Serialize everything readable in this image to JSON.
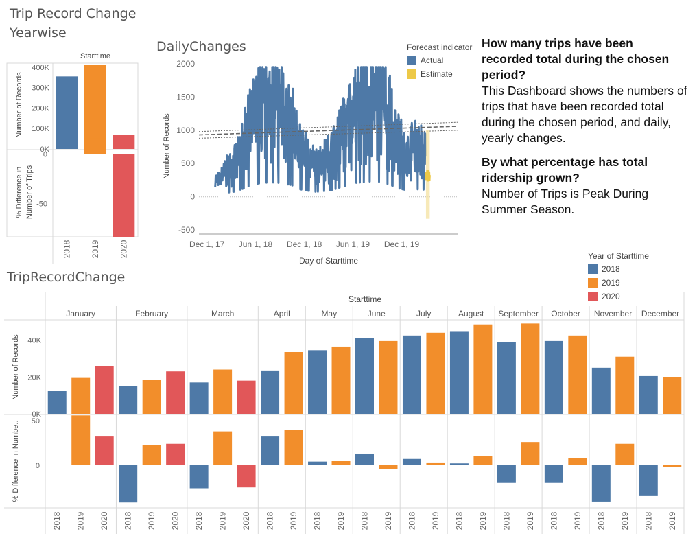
{
  "titles": {
    "yearwise_line1": "Trip Record Change",
    "yearwise_line2": "Yearwise",
    "daily": "DailyChanges",
    "triprecord": "TripRecordChange"
  },
  "text_panel": {
    "q1": "How many trips have been recorded total during the chosen period?",
    "a1": "This Dashboard shows the numbers of trips that have been recorded total during the chosen period, and daily, yearly changes.",
    "q2": "By what percentage has total ridership grown?",
    "a2": "Number of Trips is Peak During Summer Season."
  },
  "forecast_legend": {
    "title": "Forecast indicator",
    "items": [
      {
        "label": "Actual",
        "color": "#4e79a7"
      },
      {
        "label": "Estimate",
        "color": "#edc948"
      }
    ]
  },
  "year_legend": {
    "title": "Year of Starttime",
    "items": [
      {
        "label": "2018",
        "color": "#4e79a7"
      },
      {
        "label": "2019",
        "color": "#f28e2b"
      },
      {
        "label": "2020",
        "color": "#e15759"
      }
    ]
  },
  "chart_data": [
    {
      "id": "yearwise",
      "type": "bar",
      "header": "Starttime",
      "categories": [
        "2018",
        "2019",
        "2020"
      ],
      "colors": [
        "#4e79a7",
        "#f28e2b",
        "#e15759"
      ],
      "top": {
        "ylabel": "Number of Records",
        "values": [
          355000,
          410000,
          68000
        ],
        "ylim": [
          0,
          420000
        ],
        "ticks": [
          0,
          100000,
          200000,
          300000,
          400000
        ],
        "tick_labels": [
          "0K",
          "100K",
          "200K",
          "300K",
          "400K"
        ]
      },
      "bottom": {
        "ylabel": "% Difference in Number of Trips",
        "values": [
          null,
          16,
          -84
        ],
        "ylim": [
          -84,
          4
        ],
        "ticks": [
          0,
          -50
        ],
        "tick_labels": [
          "0",
          "-50"
        ]
      }
    },
    {
      "id": "daily",
      "type": "line",
      "title": "DailyChanges",
      "xlabel": "Day of Starttime",
      "ylabel": "Number of Records",
      "ylim": [
        -550,
        2050
      ],
      "yticks": [
        -500,
        0,
        500,
        1000,
        1500,
        2000
      ],
      "xticks": [
        "Dec 1, 17",
        "Jun 1, 18",
        "Dec 1, 18",
        "Jun 1, 19",
        "Dec 1, 19"
      ],
      "xtick_dates": [
        "2017-12-01",
        "2018-06-01",
        "2018-12-01",
        "2019-06-01",
        "2019-12-01"
      ],
      "x_range": [
        "2017-11-01",
        "2020-06-30"
      ],
      "actual_start": "2018-01-01",
      "actual_end": "2020-02-29",
      "actual_monthly_levels": [
        [
          "2018-01",
          250
        ],
        [
          "2018-02",
          420
        ],
        [
          "2018-03",
          520
        ],
        [
          "2018-04",
          800
        ],
        [
          "2018-05",
          1150
        ],
        [
          "2018-06",
          1350
        ],
        [
          "2018-07",
          1420
        ],
        [
          "2018-08",
          1430
        ],
        [
          "2018-09",
          1330
        ],
        [
          "2018-10",
          1150
        ],
        [
          "2018-11",
          750
        ],
        [
          "2018-12",
          600
        ],
        [
          "2019-01",
          500
        ],
        [
          "2019-02",
          580
        ],
        [
          "2019-03",
          680
        ],
        [
          "2019-04",
          950
        ],
        [
          "2019-05",
          1180
        ],
        [
          "2019-06",
          1400
        ],
        [
          "2019-07",
          1480
        ],
        [
          "2019-08",
          1560
        ],
        [
          "2019-09",
          1480
        ],
        [
          "2019-10",
          1250
        ],
        [
          "2019-11",
          880
        ],
        [
          "2019-12",
          680
        ],
        [
          "2020-01",
          780
        ],
        [
          "2020-02",
          720
        ]
      ],
      "actual_peak": 1950,
      "actual_min": 40,
      "forecast_start": "2020-03-01",
      "forecast_end": "2020-03-15",
      "forecast_mean": 300,
      "forecast_range": [
        -330,
        1000
      ],
      "trend_lines": [
        {
          "from": [
            "2017-11-01",
            930
          ],
          "to": [
            "2020-06-30",
            1060
          ],
          "style": "dashed"
        },
        {
          "from": [
            "2017-11-01",
            880
          ],
          "to": [
            "2020-06-30",
            1000
          ],
          "style": "dotted"
        },
        {
          "from": [
            "2017-11-01",
            980
          ],
          "to": [
            "2020-06-30",
            1120
          ],
          "style": "dotted"
        }
      ]
    },
    {
      "id": "monthly",
      "type": "bar",
      "title": "TripRecordChange",
      "header": "Starttime",
      "months": [
        {
          "name": "January",
          "years": [
            "2018",
            "2019",
            "2020"
          ],
          "records": [
            12500,
            19500,
            26000
          ],
          "pct": [
            null,
            56,
            33
          ]
        },
        {
          "name": "February",
          "years": [
            "2018",
            "2019",
            "2020"
          ],
          "records": [
            15000,
            18500,
            23000
          ],
          "pct": [
            -42,
            23,
            24
          ]
        },
        {
          "name": "March",
          "years": [
            "2018",
            "2019",
            "2020"
          ],
          "records": [
            17000,
            24000,
            18000
          ],
          "pct": [
            -26,
            38,
            -25
          ]
        },
        {
          "name": "April",
          "years": [
            "2018",
            "2019"
          ],
          "records": [
            23500,
            33500
          ],
          "pct": [
            33,
            40
          ]
        },
        {
          "name": "May",
          "years": [
            "2018",
            "2019"
          ],
          "records": [
            34500,
            36500
          ],
          "pct": [
            4,
            5
          ]
        },
        {
          "name": "June",
          "years": [
            "2018",
            "2019"
          ],
          "records": [
            41000,
            39500
          ],
          "pct": [
            13,
            -4
          ]
        },
        {
          "name": "July",
          "years": [
            "2018",
            "2019"
          ],
          "records": [
            42500,
            44000
          ],
          "pct": [
            7,
            3
          ]
        },
        {
          "name": "August",
          "years": [
            "2018",
            "2019"
          ],
          "records": [
            44500,
            48500
          ],
          "pct": [
            2,
            10
          ]
        },
        {
          "name": "September",
          "years": [
            "2018",
            "2019"
          ],
          "records": [
            39000,
            49000
          ],
          "pct": [
            -20,
            26
          ]
        },
        {
          "name": "October",
          "years": [
            "2018",
            "2019"
          ],
          "records": [
            39500,
            42500
          ],
          "pct": [
            -20,
            8
          ]
        },
        {
          "name": "November",
          "years": [
            "2018",
            "2019"
          ],
          "records": [
            25000,
            31000
          ],
          "pct": [
            -41,
            24
          ]
        },
        {
          "name": "December",
          "years": [
            "2018",
            "2019"
          ],
          "records": [
            20500,
            20000
          ],
          "pct": [
            -34,
            -2
          ]
        }
      ],
      "top": {
        "ylabel": "Number of Records",
        "ylim": [
          0,
          51000
        ],
        "ticks": [
          0,
          20000,
          40000
        ],
        "tick_labels": [
          "0K",
          "20K",
          "40K"
        ]
      },
      "bottom": {
        "ylabel": "% Difference in Numbe..",
        "ylim": [
          -48,
          57
        ],
        "ticks": [
          0,
          50
        ],
        "tick_labels": [
          "0",
          "50"
        ]
      },
      "year_colors": {
        "2018": "#4e79a7",
        "2019": "#f28e2b",
        "2020": "#e15759"
      }
    }
  ]
}
